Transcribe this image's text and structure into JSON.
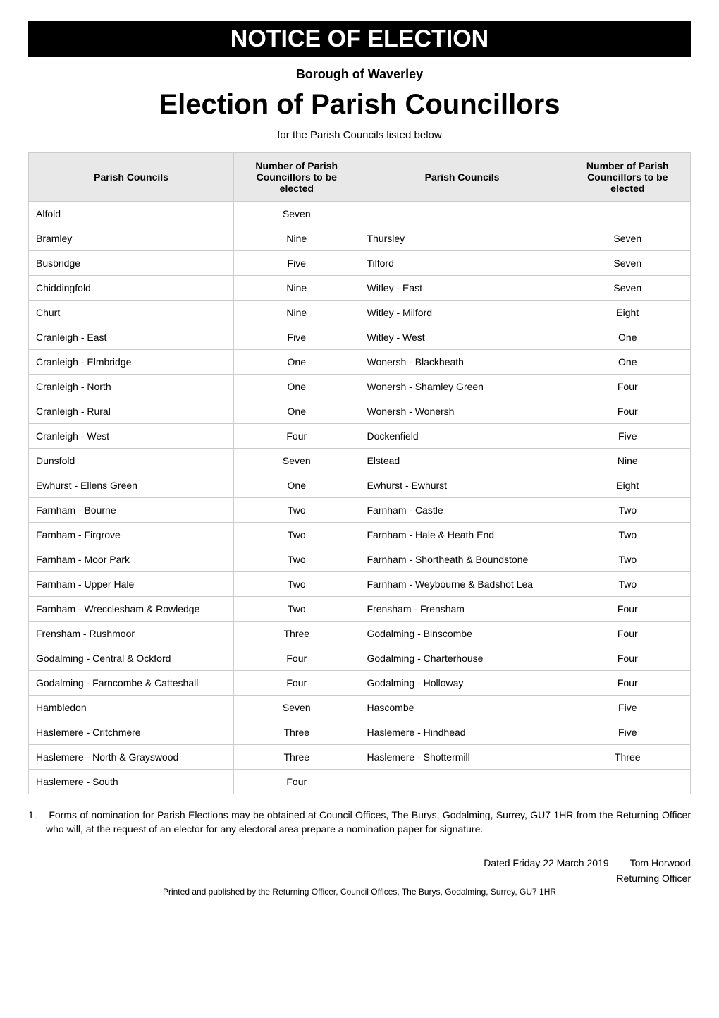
{
  "banner": "NOTICE OF ELECTION",
  "borough": "Borough of Waverley",
  "main_title": "Election of Parish Councillors",
  "subtitle": "for the Parish Councils listed below",
  "table": {
    "headers": {
      "col1": "Parish Councils",
      "col2": "Number of Parish Councillors to be elected",
      "col3": "Parish Councils",
      "col4": "Number of Parish Councillors to be elected"
    },
    "rows": [
      {
        "c1": "Alfold",
        "n1": "Seven",
        "c2": "",
        "n2": ""
      },
      {
        "c1": "Bramley",
        "n1": "Nine",
        "c2": "Thursley",
        "n2": "Seven"
      },
      {
        "c1": "Busbridge",
        "n1": "Five",
        "c2": "Tilford",
        "n2": "Seven"
      },
      {
        "c1": "Chiddingfold",
        "n1": "Nine",
        "c2": "Witley - East",
        "n2": "Seven"
      },
      {
        "c1": "Churt",
        "n1": "Nine",
        "c2": "Witley - Milford",
        "n2": "Eight"
      },
      {
        "c1": "Cranleigh - East",
        "n1": "Five",
        "c2": "Witley - West",
        "n2": "One"
      },
      {
        "c1": "Cranleigh - Elmbridge",
        "n1": "One",
        "c2": "Wonersh - Blackheath",
        "n2": "One"
      },
      {
        "c1": "Cranleigh - North",
        "n1": "One",
        "c2": "Wonersh - Shamley Green",
        "n2": "Four"
      },
      {
        "c1": "Cranleigh - Rural",
        "n1": "One",
        "c2": "Wonersh - Wonersh",
        "n2": "Four"
      },
      {
        "c1": "Cranleigh - West",
        "n1": "Four",
        "c2": "Dockenfield",
        "n2": "Five"
      },
      {
        "c1": "Dunsfold",
        "n1": "Seven",
        "c2": "Elstead",
        "n2": "Nine"
      },
      {
        "c1": "Ewhurst - Ellens Green",
        "n1": "One",
        "c2": "Ewhurst - Ewhurst",
        "n2": "Eight"
      },
      {
        "c1": "Farnham - Bourne",
        "n1": "Two",
        "c2": "Farnham - Castle",
        "n2": "Two"
      },
      {
        "c1": "Farnham - Firgrove",
        "n1": "Two",
        "c2": "Farnham - Hale & Heath End",
        "n2": "Two"
      },
      {
        "c1": "Farnham - Moor Park",
        "n1": "Two",
        "c2": "Farnham - Shortheath & Boundstone",
        "n2": "Two"
      },
      {
        "c1": "Farnham - Upper Hale",
        "n1": "Two",
        "c2": "Farnham - Weybourne & Badshot Lea",
        "n2": "Two"
      },
      {
        "c1": "Farnham - Wrecclesham & Rowledge",
        "n1": "Two",
        "c2": "Frensham - Frensham",
        "n2": "Four"
      },
      {
        "c1": "Frensham - Rushmoor",
        "n1": "Three",
        "c2": "Godalming - Binscombe",
        "n2": "Four"
      },
      {
        "c1": "Godalming - Central & Ockford",
        "n1": "Four",
        "c2": "Godalming - Charterhouse",
        "n2": "Four"
      },
      {
        "c1": "Godalming - Farncombe & Catteshall",
        "n1": "Four",
        "c2": "Godalming - Holloway",
        "n2": "Four"
      },
      {
        "c1": "Hambledon",
        "n1": "Seven",
        "c2": "Hascombe",
        "n2": "Five"
      },
      {
        "c1": "Haslemere - Critchmere",
        "n1": "Three",
        "c2": "Haslemere - Hindhead",
        "n2": "Five"
      },
      {
        "c1": "Haslemere - North & Grayswood",
        "n1": "Three",
        "c2": "Haslemere - Shottermill",
        "n2": "Three"
      },
      {
        "c1": "Haslemere - South",
        "n1": "Four",
        "c2": "",
        "n2": ""
      }
    ]
  },
  "note": {
    "number": "1.",
    "text": "Forms of nomination for Parish Elections may be obtained at Council Offices, The Burys, Godalming, Surrey, GU7 1HR from the Returning Officer who will, at the request of an elector for any electoral area prepare a nomination paper for signature."
  },
  "footer": {
    "date": "Dated Friday 22 March 2019",
    "name": "Tom Horwood",
    "role": "Returning Officer",
    "printed_by": "Printed and published by the Returning Officer, Council Offices, The Burys, Godalming, Surrey, GU7 1HR"
  },
  "colors": {
    "banner_bg": "#000000",
    "banner_text": "#ffffff",
    "header_bg": "#e8e8e8",
    "border": "#cccccc",
    "page_bg": "#ffffff"
  }
}
